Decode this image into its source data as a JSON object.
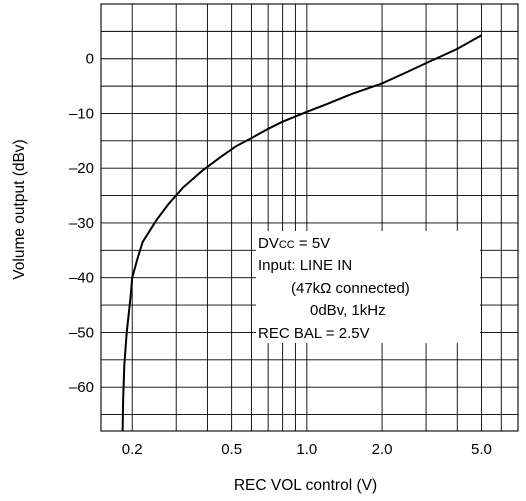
{
  "chart_data": {
    "type": "line",
    "title": "",
    "xlabel": "REC VOL control (V)",
    "ylabel": "Volume output (dBv)",
    "x_scale": "log",
    "xlim": [
      0.15,
      7.0
    ],
    "ylim": [
      -68,
      10
    ],
    "x_ticks": [
      {
        "value": 0.2,
        "label": "0.2"
      },
      {
        "value": 0.5,
        "label": "0.5"
      },
      {
        "value": 1.0,
        "label": "1.0"
      },
      {
        "value": 2.0,
        "label": "2.0"
      },
      {
        "value": 5.0,
        "label": "5.0"
      }
    ],
    "y_ticks": [
      {
        "value": 0,
        "label": "0"
      },
      {
        "value": -10,
        "label": "–10"
      },
      {
        "value": -20,
        "label": "–20"
      },
      {
        "value": -30,
        "label": "–30"
      },
      {
        "value": -40,
        "label": "–40"
      },
      {
        "value": -50,
        "label": "–50"
      },
      {
        "value": -60,
        "label": "–60"
      }
    ],
    "grid": true,
    "series": [
      {
        "x": [
          0.183,
          0.184,
          0.186,
          0.19,
          0.197,
          0.2,
          0.21,
          0.22,
          0.25,
          0.28,
          0.32,
          0.38,
          0.45,
          0.52,
          0.6,
          0.7,
          0.8,
          1.0,
          1.2,
          1.5,
          2.0,
          2.5,
          3.0,
          4.0,
          5.0
        ],
        "y": [
          -68,
          -62,
          -56,
          -50,
          -43.5,
          -40,
          -36.5,
          -33.5,
          -29.5,
          -26.5,
          -23.5,
          -20.5,
          -18,
          -16,
          -14.5,
          -12.8,
          -11.5,
          -9.7,
          -8.3,
          -6.5,
          -4.5,
          -2.5,
          -0.8,
          1.8,
          4.3
        ]
      }
    ],
    "annotations": {
      "dvcc_prefix": "DV",
      "dvcc_sub": "CC",
      "dvcc_rest": " = 5V",
      "input_line": "Input: LINE IN",
      "connected_line": "(47kΩ connected)",
      "signal_line": "0dBv, 1kHz",
      "recbal_line": "REC BAL = 2.5V"
    }
  }
}
